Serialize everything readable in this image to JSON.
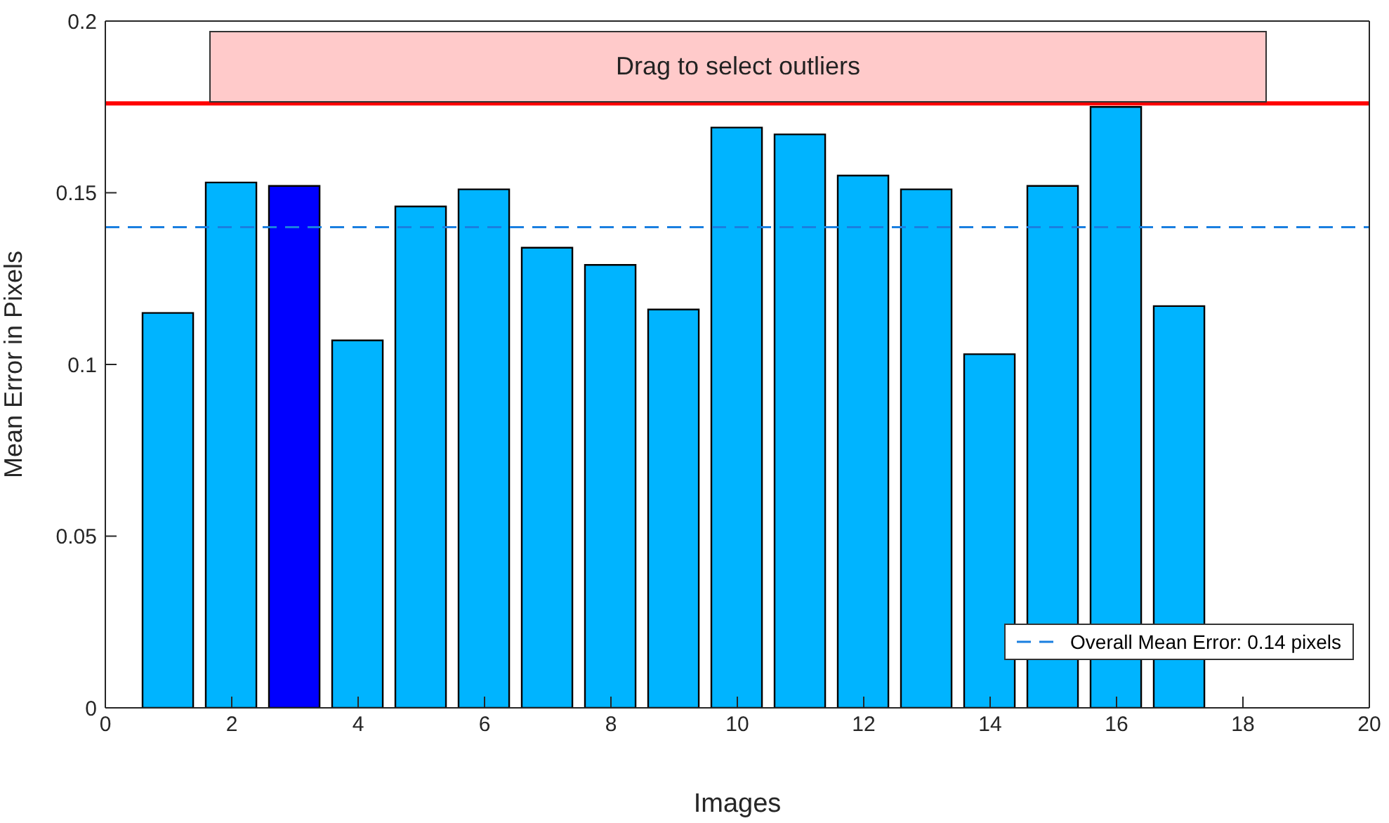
{
  "chart_data": {
    "type": "bar",
    "xlabel": "Images",
    "ylabel": "Mean Error in Pixels",
    "x": [
      1,
      2,
      3,
      4,
      5,
      6,
      7,
      8,
      9,
      10,
      11,
      12,
      13,
      14,
      15,
      16,
      17
    ],
    "values": [
      0.115,
      0.153,
      0.152,
      0.107,
      0.146,
      0.151,
      0.134,
      0.129,
      0.116,
      0.169,
      0.167,
      0.155,
      0.151,
      0.103,
      0.152,
      0.175,
      0.117
    ],
    "colors": [
      "#00b4ff",
      "#00b4ff",
      "#0000ff",
      "#00b4ff",
      "#00b4ff",
      "#00b4ff",
      "#00b4ff",
      "#00b4ff",
      "#00b4ff",
      "#00b4ff",
      "#00b4ff",
      "#00b4ff",
      "#00b4ff",
      "#00b4ff",
      "#00b4ff",
      "#00b4ff",
      "#00b4ff"
    ],
    "xlim": [
      0,
      20
    ],
    "xticks": [
      0,
      2,
      4,
      6,
      8,
      10,
      12,
      14,
      16,
      18,
      20
    ],
    "ylim": [
      0,
      0.2
    ],
    "yticks": [
      0,
      0.05,
      0.1,
      0.15,
      0.2
    ],
    "ref_lines": [
      {
        "axis": "y",
        "value": 0.176,
        "color": "#ff0000",
        "line_style": "solid"
      },
      {
        "axis": "y",
        "value": 0.14,
        "label": "Overall Mean Error: 0.14 pixels",
        "color": "#1a7fe0",
        "line_style": "dashed"
      }
    ],
    "annotations": [
      "Drag to select outliers"
    ],
    "legend": "bottom right"
  }
}
